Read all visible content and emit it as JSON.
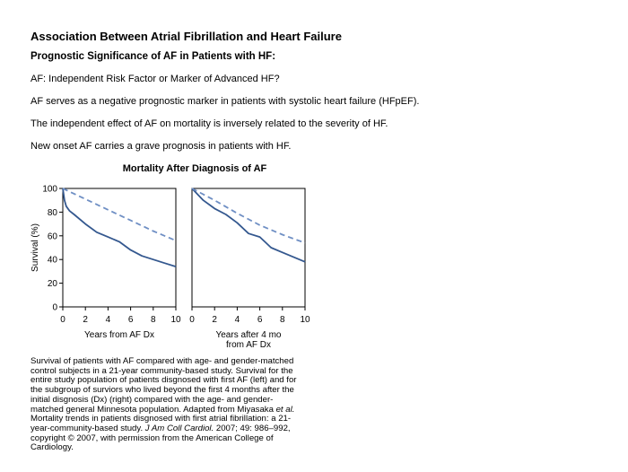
{
  "header": {
    "title": "Association Between Atrial Fibrillation and Heart Failure",
    "subtitle": "Prognostic Significance of AF in Patients with HF:"
  },
  "body_lines": [
    "AF: Independent Risk Factor or Marker of Advanced HF?",
    "AF serves as a negative prognostic marker in patients with systolic heart failure (HFpEF).",
    "The independent effect of AF on mortality is inversely related to the severity of HF.",
    "New onset AF carries a grave prognosis in patients with HF."
  ],
  "chart_data": {
    "type": "line",
    "title": "Mortality After Diagnosis of AF",
    "ylabel": "Survival (%)",
    "ylim": [
      0,
      100
    ],
    "yticks": [
      "0",
      "20",
      "40",
      "60",
      "80",
      "100"
    ],
    "xticks": [
      "0",
      "2",
      "4",
      "6",
      "8",
      "10"
    ],
    "panels": [
      {
        "xlabel": [
          "Years from AF Dx"
        ],
        "xlim": [
          0,
          10
        ],
        "series": [
          {
            "style": "solid",
            "color": "#34588f",
            "x": [
              0,
              0.15,
              0.3,
              0.6,
              1,
              2,
              3,
              4,
              5,
              6,
              7,
              8,
              9,
              10
            ],
            "y": [
              100,
              90,
              85,
              81,
              78,
              70,
              63,
              59,
              55,
              48,
              43,
              40,
              37,
              34
            ]
          },
          {
            "style": "dashed",
            "color": "#6f8fc4",
            "x": [
              0,
              2,
              4,
              6,
              8,
              10
            ],
            "y": [
              100,
              91,
              82,
              73,
              64,
              56
            ]
          }
        ]
      },
      {
        "xlabel": [
          "Years after 4 mo",
          "from AF Dx"
        ],
        "xlim": [
          0,
          10
        ],
        "series": [
          {
            "style": "solid",
            "color": "#34588f",
            "x": [
              0,
              1,
              2,
              3,
              4,
              5,
              6,
              7,
              8,
              9,
              10
            ],
            "y": [
              100,
              90,
              83,
              78,
              71,
              62,
              59,
              50,
              46,
              42,
              38
            ]
          },
          {
            "style": "dashed",
            "color": "#6f8fc4",
            "x": [
              0,
              2,
              4,
              6,
              8,
              10
            ],
            "y": [
              100,
              90,
              79,
              69,
              61,
              54
            ]
          }
        ]
      }
    ]
  },
  "caption": {
    "line1": "Survival of patients with AF compared with age- and gender-matched",
    "line2": "control subjects in a 21-year community-based study. Survival for the",
    "line3": "entire study population of patients disgnosed with first AF (left) and for",
    "line4": "the subgroup of surviors who lived beyond the first 4 months after the",
    "line5": "initial disgnosis (Dx) (right) compared with the age- and gender-",
    "line6_a": "matched general Minnesota population. Adapted from Miyasaka ",
    "line6_b": "et al.",
    "line7": "Mortality trends in patients disgnosed with first atrial fibrillation: a 21-",
    "line8_a": "year-community-based study. ",
    "line8_b": "J Am Coll Cardiol.",
    "line8_c": " 2007; 49: 986–992,",
    "line9": "copyright © 2007, with permission from the American College of",
    "line10": "Cardiology."
  }
}
